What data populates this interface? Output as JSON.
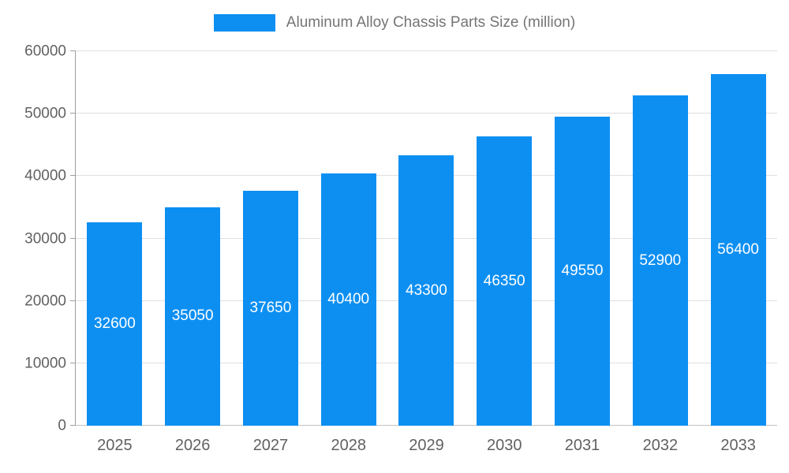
{
  "chart_data": {
    "type": "bar",
    "title": "Aluminum Alloy Chassis Parts Size (million)",
    "categories": [
      "2025",
      "2026",
      "2027",
      "2028",
      "2029",
      "2030",
      "2031",
      "2032",
      "2033"
    ],
    "values": [
      32600,
      35050,
      37650,
      40400,
      43300,
      46350,
      49550,
      52900,
      56400
    ],
    "xlabel": "",
    "ylabel": "",
    "ylim": [
      0,
      60000
    ],
    "yticks": [
      0,
      10000,
      20000,
      30000,
      40000,
      50000,
      60000
    ],
    "grid": "horizontal",
    "legend_position": "top",
    "colors": {
      "bar": "#0d8ff2",
      "bar_value_label": "#ffffff",
      "axis_text": "#616161",
      "legend_text": "#757575",
      "gridline": "#e0e0e0",
      "axis_line": "#9e9e9e",
      "background": "#ffffff"
    }
  }
}
